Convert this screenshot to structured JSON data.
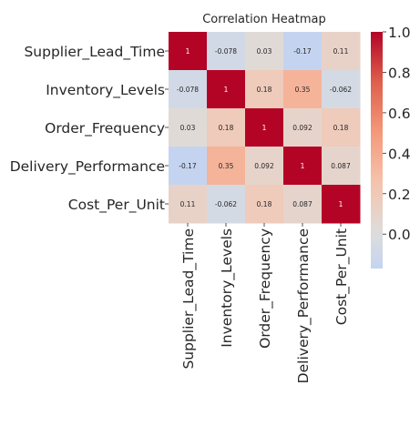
{
  "chart_data": {
    "type": "heatmap",
    "title": "Correlation Heatmap",
    "rows": [
      "Supplier_Lead_Time",
      "Inventory_Levels",
      "Order_Frequency",
      "Delivery_Performance",
      "Cost_Per_Unit"
    ],
    "columns": [
      "Supplier_Lead_Time",
      "Inventory_Levels",
      "Order_Frequency",
      "Delivery_Performance",
      "Cost_Per_Unit"
    ],
    "values": [
      [
        1,
        -0.078,
        0.03,
        -0.17,
        0.11
      ],
      [
        -0.078,
        1,
        0.18,
        0.35,
        -0.062
      ],
      [
        0.03,
        0.18,
        1,
        0.092,
        0.18
      ],
      [
        -0.17,
        0.35,
        0.092,
        1,
        0.087
      ],
      [
        0.11,
        -0.062,
        0.18,
        0.087,
        1
      ]
    ],
    "value_labels": [
      [
        "1",
        "-0.078",
        "0.03",
        "-0.17",
        "0.11"
      ],
      [
        "-0.078",
        "1",
        "0.18",
        "0.35",
        "-0.062"
      ],
      [
        "0.03",
        "0.18",
        "1",
        "0.092",
        "0.18"
      ],
      [
        "-0.17",
        "0.35",
        "0.092",
        "1",
        "0.087"
      ],
      [
        "0.11",
        "-0.062",
        "0.18",
        "0.087",
        "1"
      ]
    ],
    "colormap": "coolwarm",
    "vmin": -0.17,
    "vmax": 1,
    "colorbar": {
      "ticks": [
        0.0,
        0.2,
        0.4,
        0.6,
        0.8,
        1.0
      ],
      "tick_labels": [
        "0.0",
        "0.2",
        "0.4",
        "0.6",
        "0.8",
        "1.0"
      ]
    }
  }
}
